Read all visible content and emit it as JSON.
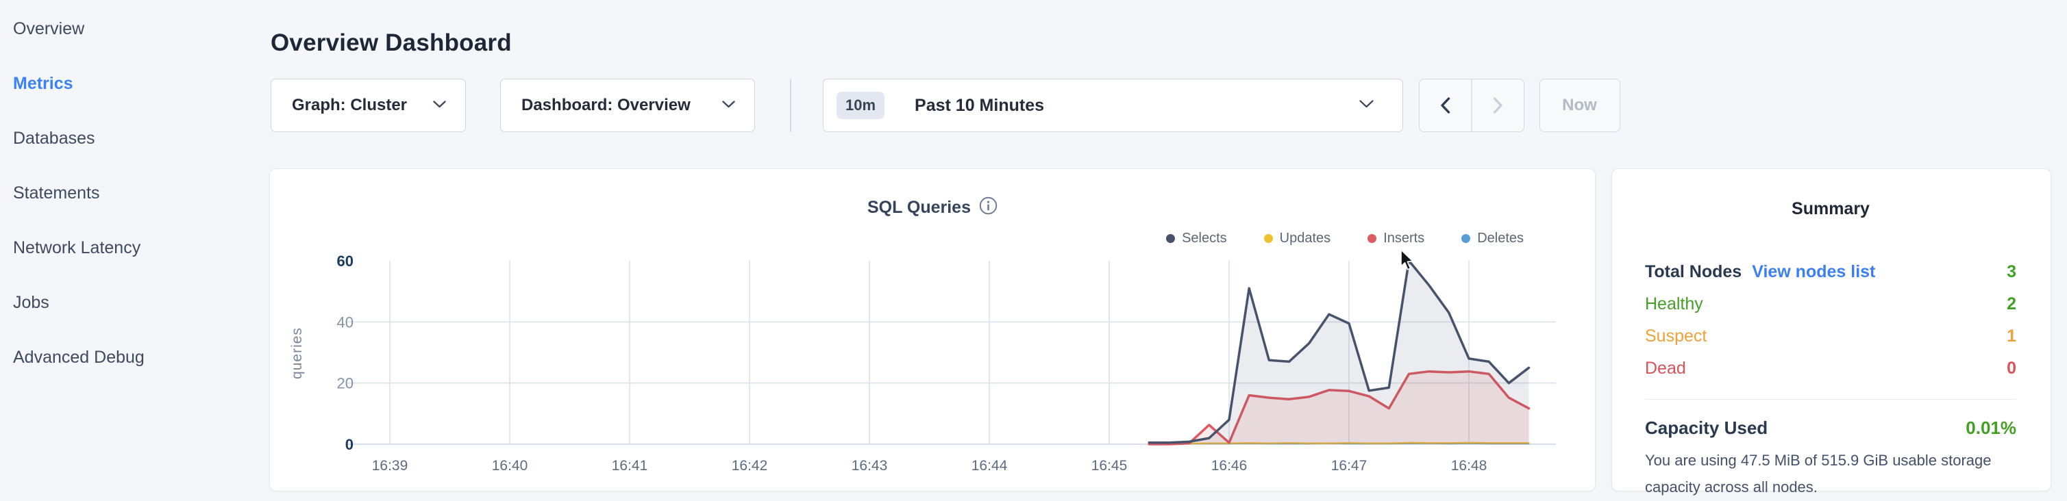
{
  "sidebar": {
    "items": [
      {
        "label": "Overview",
        "slug": "overview",
        "active": false
      },
      {
        "label": "Metrics",
        "slug": "metrics",
        "active": true
      },
      {
        "label": "Databases",
        "slug": "databases",
        "active": false
      },
      {
        "label": "Statements",
        "slug": "statements",
        "active": false
      },
      {
        "label": "Network Latency",
        "slug": "network-latency",
        "active": false
      },
      {
        "label": "Jobs",
        "slug": "jobs",
        "active": false
      },
      {
        "label": "Advanced Debug",
        "slug": "advanced-debug",
        "active": false
      }
    ]
  },
  "header": {
    "title": "Overview Dashboard"
  },
  "toolbar": {
    "graph_dropdown": {
      "label": "Graph: Cluster"
    },
    "dashboard_dropdown": {
      "label": "Dashboard: Overview"
    },
    "time_picker": {
      "badge": "10m",
      "label": "Past 10 Minutes"
    },
    "now_label": "Now"
  },
  "chart_card": {
    "title": "SQL Queries"
  },
  "chart_data": {
    "type": "area",
    "title": "SQL Queries",
    "ylabel": "queries",
    "ylim": [
      0,
      60
    ],
    "y_ticks": [
      0,
      20,
      40,
      60
    ],
    "y_ticks_bold": [
      0,
      60
    ],
    "x_ticks": [
      "16:39",
      "16:40",
      "16:41",
      "16:42",
      "16:43",
      "16:44",
      "16:45",
      "16:46",
      "16:47",
      "16:48"
    ],
    "grid": true,
    "legend_position": "top-right",
    "x_start": "16:45:20",
    "x_interval_seconds": 10,
    "sample_times": [
      "16:45:20",
      "16:45:30",
      "16:45:40",
      "16:45:50",
      "16:46:00",
      "16:46:10",
      "16:46:20",
      "16:46:30",
      "16:46:40",
      "16:46:50",
      "16:47:00",
      "16:47:10",
      "16:47:20",
      "16:47:30",
      "16:47:40",
      "16:47:50",
      "16:48:00",
      "16:48:10",
      "16:48:20",
      "16:48:30"
    ],
    "series": [
      {
        "name": "Selects",
        "color": "#47536b",
        "fill_opacity": 0.11,
        "width": 3.5,
        "values": [
          0.5,
          0.5,
          0.8,
          2,
          8,
          51,
          27.5,
          27,
          33,
          42.5,
          39.5,
          17.5,
          18.5,
          60,
          52,
          43,
          28,
          27,
          20,
          25
        ]
      },
      {
        "name": "Updates",
        "color": "#f0c12f",
        "fill_opacity": 0.2,
        "width": 2.2,
        "values": [
          0,
          0,
          0.2,
          0.3,
          0.3,
          0.4,
          0.3,
          0.4,
          0.3,
          0.3,
          0.4,
          0.3,
          0.3,
          0.5,
          0.4,
          0.4,
          0.5,
          0.4,
          0.4,
          0.4
        ]
      },
      {
        "name": "Inserts",
        "color": "#dd5a60",
        "fill_opacity": 0.13,
        "width": 3.5,
        "values": [
          0,
          0,
          0.3,
          6.3,
          0.5,
          16,
          15.2,
          14.7,
          15.5,
          17.7,
          17.4,
          15.7,
          11.7,
          23,
          23.8,
          23.5,
          23.8,
          23,
          15.2,
          11.7
        ]
      },
      {
        "name": "Deletes",
        "color": "#549fd7",
        "fill_opacity": 0.2,
        "width": 2.2,
        "values": [
          0.2,
          0.2,
          0.2,
          0.2,
          0.2,
          0.3,
          0.2,
          0.2,
          0.2,
          0.3,
          0.2,
          0.2,
          0.2,
          0.3,
          0.3,
          0.2,
          0.3,
          0.2,
          0.2,
          0.2
        ]
      }
    ]
  },
  "summary": {
    "title": "Summary",
    "total_nodes_label": "Total Nodes",
    "view_nodes_link": "View nodes list",
    "total_nodes_value": "3",
    "total_nodes_color": "#44a025",
    "status_rows": [
      {
        "label": "Healthy",
        "value": "2",
        "color": "#44a025",
        "slug": "healthy"
      },
      {
        "label": "Suspect",
        "value": "1",
        "color": "#efa13b",
        "slug": "suspect"
      },
      {
        "label": "Dead",
        "value": "0",
        "color": "#d9535a",
        "slug": "dead"
      }
    ],
    "capacity_label": "Capacity Used",
    "capacity_value": "0.01%",
    "capacity_color": "#44a025",
    "capacity_description": "You are using 47.5 MiB of 515.9 GiB usable storage capacity across all nodes."
  }
}
